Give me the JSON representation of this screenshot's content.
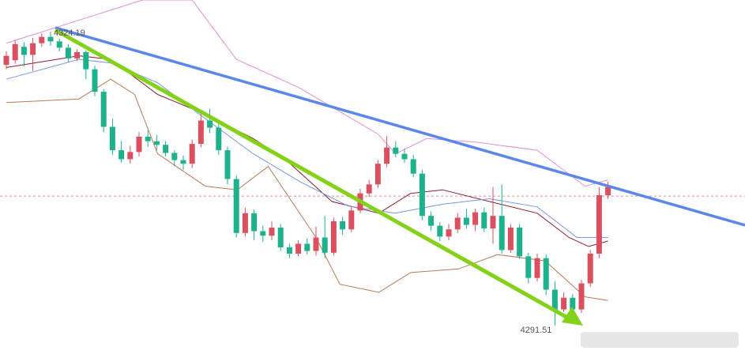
{
  "chart_data": {
    "type": "candlestick",
    "up_color": "#dc4f5e",
    "down_color": "#1db28c",
    "ylim": [
      4287.9,
      4327.7
    ],
    "price_line": 4305.9,
    "price_line_color": "#e58a8a",
    "high_label": "4324.19",
    "low_label": "4291.51",
    "candles": {
      "open": [
        4320.5,
        4321.0,
        4322.5,
        4321.6,
        4322.9,
        4323.6,
        4323.1,
        4322.4,
        4321.2,
        4321.9,
        4320.0,
        4317.5,
        4313.6,
        4311.0,
        4310.0,
        4310.8,
        4312.5,
        4312.0,
        4311.6,
        4310.7,
        4309.9,
        4309.5,
        4311.7,
        4314.3,
        4313.5,
        4311.0,
        4307.8,
        4301.8,
        4304.0,
        4302.0,
        4301.5,
        4302.4,
        4300.2,
        4299.5,
        4300.6,
        4299.8,
        4301.3,
        4299.6,
        4303.1,
        4302.2,
        4304.3,
        4306.2,
        4307.2,
        4309.5,
        4311.3,
        4310.6,
        4310.0,
        4308.4,
        4303.7,
        4302.6,
        4301.4,
        4302.2,
        4303.5,
        4302.7,
        4304.1,
        4302.3,
        4303.7,
        4299.9,
        4302.4,
        4299.2,
        4296.8,
        4299.0,
        4295.5,
        4293.3,
        4294.6,
        4293.3,
        4296.2,
        4299.5,
        4306.0
      ],
      "close": [
        4321.5,
        4322.8,
        4321.6,
        4322.9,
        4323.6,
        4323.1,
        4322.4,
        4321.2,
        4321.9,
        4320.0,
        4317.5,
        4313.6,
        4311.0,
        4310.0,
        4310.8,
        4312.5,
        4312.0,
        4311.6,
        4310.7,
        4309.9,
        4309.5,
        4311.7,
        4314.3,
        4313.5,
        4311.0,
        4307.8,
        4301.8,
        4304.0,
        4302.0,
        4301.5,
        4302.4,
        4300.2,
        4299.5,
        4300.6,
        4299.8,
        4301.3,
        4299.6,
        4303.1,
        4302.2,
        4304.3,
        4306.2,
        4307.2,
        4309.5,
        4311.3,
        4310.6,
        4310.0,
        4308.4,
        4303.7,
        4302.6,
        4301.4,
        4302.2,
        4303.5,
        4302.7,
        4304.1,
        4302.3,
        4303.7,
        4299.9,
        4302.4,
        4299.2,
        4296.8,
        4299.0,
        4295.5,
        4293.3,
        4294.6,
        4293.3,
        4296.2,
        4299.5,
        4306.0,
        4306.9
      ],
      "high": [
        4322.0,
        4323.2,
        4323.0,
        4323.5,
        4324.0,
        4324.19,
        4323.4,
        4322.8,
        4322.2,
        4322.1,
        4320.4,
        4317.8,
        4314.5,
        4312.0,
        4311.5,
        4313.0,
        4313.2,
        4312.7,
        4312.0,
        4311.0,
        4310.4,
        4312.2,
        4315.2,
        4315.6,
        4314.0,
        4311.4,
        4308.2,
        4304.6,
        4304.4,
        4302.6,
        4303.1,
        4302.8,
        4300.6,
        4301.0,
        4301.2,
        4302.5,
        4303.7,
        4303.5,
        4303.6,
        4304.8,
        4306.7,
        4307.7,
        4309.9,
        4312.6,
        4312.0,
        4311.2,
        4310.5,
        4308.8,
        4304.2,
        4303.0,
        4302.8,
        4304.0,
        4304.5,
        4304.5,
        4304.6,
        4306.9,
        4307.2,
        4302.8,
        4302.8,
        4299.6,
        4299.5,
        4299.4,
        4296.4,
        4295.2,
        4295.0,
        4296.6,
        4299.9,
        4306.9,
        4307.5
      ],
      "low": [
        4320.0,
        4320.6,
        4320.3,
        4319.8,
        4322.5,
        4322.6,
        4322.0,
        4320.8,
        4320.9,
        4318.9,
        4317.0,
        4313.0,
        4310.5,
        4309.6,
        4309.5,
        4310.3,
        4311.4,
        4311.0,
        4310.3,
        4309.2,
        4308.8,
        4309.0,
        4311.3,
        4312.9,
        4310.5,
        4307.2,
        4301.3,
        4301.4,
        4301.0,
        4300.8,
        4301.0,
        4299.8,
        4299.0,
        4299.2,
        4299.4,
        4299.3,
        4299.0,
        4299.3,
        4301.6,
        4301.9,
        4304.0,
        4305.8,
        4306.8,
        4309.1,
        4310.2,
        4309.6,
        4308.0,
        4303.2,
        4302.0,
        4300.9,
        4301.0,
        4301.8,
        4302.3,
        4302.0,
        4301.9,
        4300.6,
        4299.5,
        4299.6,
        4298.9,
        4296.2,
        4296.4,
        4294.9,
        4291.51,
        4293.0,
        4292.8,
        4292.9,
        4295.8,
        4299.0,
        4305.6
      ]
    },
    "lines": [
      {
        "color": "#e48fd8",
        "x": [
          0,
          15.4,
          21,
          26,
          33,
          42,
          44,
          47.5,
          53,
          60,
          65.4,
          68
        ],
        "values": [
          4322.9,
          4327.7,
          4327.7,
          4321.1,
          4318.0,
          4312.8,
          4310.6,
          4312.3,
          4311.9,
          4311.0,
          4307.0,
          4307.7
        ]
      },
      {
        "color": "#8b1c2c",
        "x": [
          0,
          8.2,
          11.8,
          17.1,
          22.5,
          27.9,
          31.4,
          36.8,
          42.1,
          45.7,
          49.3,
          54.6,
          60,
          63.6,
          65.8,
          68
        ],
        "values": [
          4320.2,
          4321.5,
          4321.1,
          4317.2,
          4315.0,
          4312.3,
          4310.1,
          4305.3,
          4304.0,
          4306.2,
          4306.6,
          4305.3,
          4304.0,
          4301.3,
          4300.3,
          4300.9
        ]
      },
      {
        "color": "#b97a52",
        "x": [
          0,
          8.2,
          11.8,
          14.5,
          17.1,
          22.5,
          26.1,
          29.6,
          35,
          37.7,
          42.1,
          45.7,
          51.1,
          55.5,
          60.9,
          65.4,
          68
        ],
        "values": [
          4316.3,
          4316.7,
          4318.9,
          4317.2,
          4310.6,
          4307.0,
          4306.6,
          4309.2,
          4301.3,
          4296.1,
          4295.2,
          4297.4,
          4297.8,
          4299.4,
          4298.7,
          4294.7,
          4294.3
        ]
      },
      {
        "color": "#7b95e6",
        "x": [
          0,
          8.2,
          11.8,
          17.1,
          22.5,
          27.9,
          33.2,
          38.6,
          43.9,
          49.3,
          54.6,
          60,
          64.5,
          68
        ],
        "values": [
          4318.9,
          4321.1,
          4320.7,
          4318.5,
          4314.5,
          4310.6,
          4307.5,
          4304.8,
          4304.0,
          4305.0,
          4305.6,
          4304.7,
          4301.3,
          4301.3
        ]
      }
    ]
  }
}
